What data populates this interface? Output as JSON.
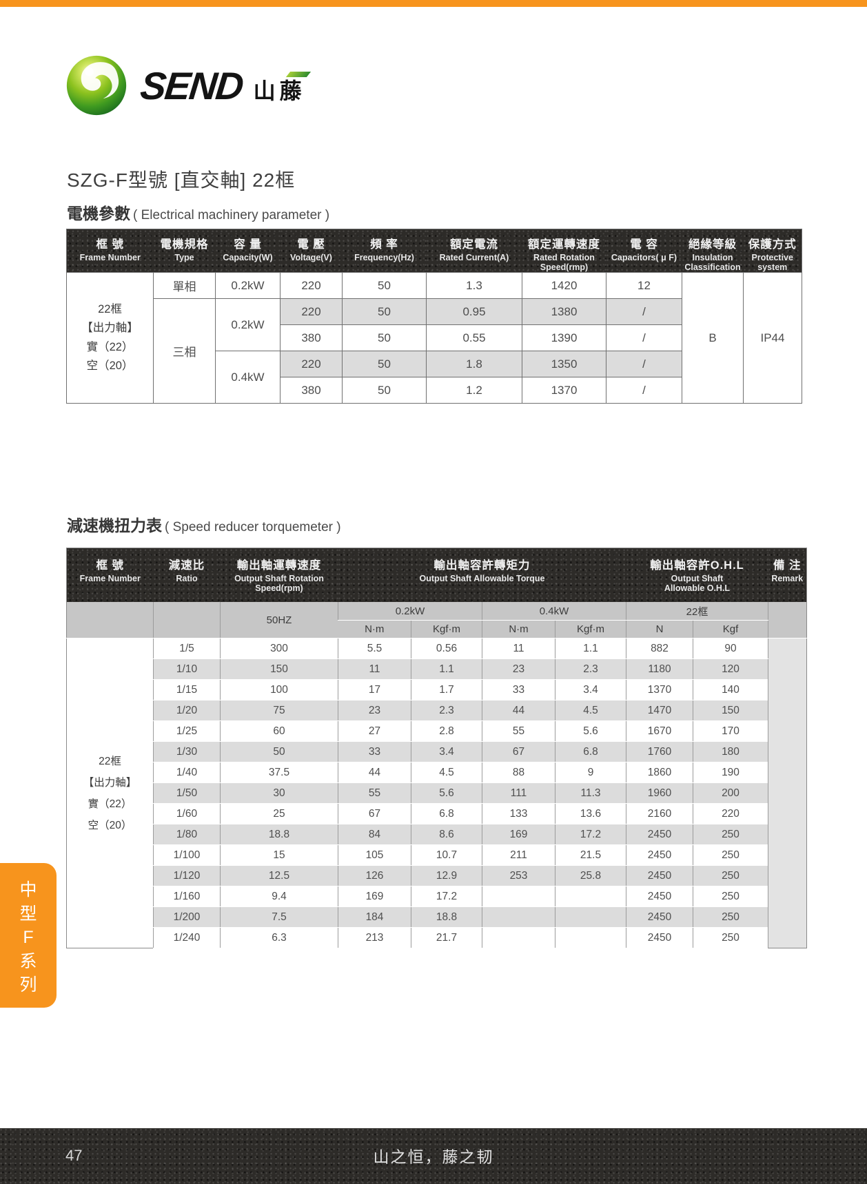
{
  "page": {
    "accent_color": "#F7941D",
    "band_color": "#2D2B28",
    "title": "SZG-F型號 [直交軸] 22框",
    "side_tab_chars": [
      "中",
      "型",
      "F",
      "系",
      "列"
    ],
    "footer": {
      "page_number": "47",
      "slogan": "山之恒，藤之韧"
    }
  },
  "logo": {
    "brand_en": "SEND",
    "brand_cn": "山藤"
  },
  "sections": {
    "motor": {
      "heading_cn": "電機參數",
      "heading_en": "( Electrical machinery parameter )"
    },
    "torque": {
      "heading_cn": "減速機扭力表",
      "heading_en": "( Speed reducer torquemeter )"
    }
  },
  "motor_table": {
    "headers": [
      {
        "cn": "框 號",
        "en": "Frame Number"
      },
      {
        "cn": "電機規格",
        "en": "Type"
      },
      {
        "cn": "容 量",
        "en": "Capacity(W)"
      },
      {
        "cn": "電 壓",
        "en": "Voltage(V)"
      },
      {
        "cn": "頻 率",
        "en": "Frequency(Hz)"
      },
      {
        "cn": "額定電流",
        "en": "Rated Current(A)"
      },
      {
        "cn": "額定運轉速度",
        "en": "Rated Rotation Speed(rmp)"
      },
      {
        "cn": "電 容",
        "en": "Capacitors( μ F)"
      },
      {
        "cn": "絕緣等級",
        "en": "Insulation Classification"
      },
      {
        "cn": "保護方式",
        "en": "Protective system"
      }
    ],
    "frame_lines": [
      "22框",
      "【出力軸】",
      "實（22）",
      "空（20）"
    ],
    "type_single": "單相",
    "type_three": "三相",
    "cap_single": "0.2kW",
    "cap_02": "0.2kW",
    "cap_04": "0.4kW",
    "insulation": "B",
    "protection": "IP44",
    "rows": [
      [
        "220",
        "50",
        "1.3",
        "1420",
        "12"
      ],
      [
        "220",
        "50",
        "0.95",
        "1380",
        "/"
      ],
      [
        "380",
        "50",
        "0.55",
        "1390",
        "/"
      ],
      [
        "220",
        "50",
        "1.8",
        "1350",
        "/"
      ],
      [
        "380",
        "50",
        "1.2",
        "1370",
        "/"
      ]
    ]
  },
  "torque_table": {
    "headers": {
      "frame": {
        "cn": "框 號",
        "en": "Frame Number"
      },
      "ratio": {
        "cn": "減速比",
        "en": "Ratio"
      },
      "speed": {
        "cn": "輸出軸運轉速度",
        "en": "Output Shaft Rotation Speed(rpm)"
      },
      "torque": {
        "cn": "輸出軸容許轉矩力",
        "en": "Output Shaft Allowable Torque"
      },
      "ohl": {
        "cn": "輸出軸容許O.H.L",
        "en": "Output Shaft Allowable O.H.L"
      },
      "remark": {
        "cn": "備 注",
        "en": "Remark"
      }
    },
    "subheaders": {
      "hz": "50HZ",
      "kw02": "0.2kW",
      "kw04": "0.4kW",
      "frame22": "22框",
      "units": [
        "N·m",
        "Kgf·m",
        "N·m",
        "Kgf·m",
        "N",
        "Kgf"
      ]
    },
    "frame_lines": [
      "22框",
      "【出力軸】",
      "實（22）",
      "空（20）"
    ],
    "rows": [
      [
        "1/5",
        "300",
        "5.5",
        "0.56",
        "11",
        "1.1",
        "882",
        "90"
      ],
      [
        "1/10",
        "150",
        "11",
        "1.1",
        "23",
        "2.3",
        "1180",
        "120"
      ],
      [
        "1/15",
        "100",
        "17",
        "1.7",
        "33",
        "3.4",
        "1370",
        "140"
      ],
      [
        "1/20",
        "75",
        "23",
        "2.3",
        "44",
        "4.5",
        "1470",
        "150"
      ],
      [
        "1/25",
        "60",
        "27",
        "2.8",
        "55",
        "5.6",
        "1670",
        "170"
      ],
      [
        "1/30",
        "50",
        "33",
        "3.4",
        "67",
        "6.8",
        "1760",
        "180"
      ],
      [
        "1/40",
        "37.5",
        "44",
        "4.5",
        "88",
        "9",
        "1860",
        "190"
      ],
      [
        "1/50",
        "30",
        "55",
        "5.6",
        "111",
        "11.3",
        "1960",
        "200"
      ],
      [
        "1/60",
        "25",
        "67",
        "6.8",
        "133",
        "13.6",
        "2160",
        "220"
      ],
      [
        "1/80",
        "18.8",
        "84",
        "8.6",
        "169",
        "17.2",
        "2450",
        "250"
      ],
      [
        "1/100",
        "15",
        "105",
        "10.7",
        "211",
        "21.5",
        "2450",
        "250"
      ],
      [
        "1/120",
        "12.5",
        "126",
        "12.9",
        "253",
        "25.8",
        "2450",
        "250"
      ],
      [
        "1/160",
        "9.4",
        "169",
        "17.2",
        "",
        "",
        "2450",
        "250"
      ],
      [
        "1/200",
        "7.5",
        "184",
        "18.8",
        "",
        "",
        "2450",
        "250"
      ],
      [
        "1/240",
        "6.3",
        "213",
        "21.7",
        "",
        "",
        "2450",
        "250"
      ]
    ]
  }
}
